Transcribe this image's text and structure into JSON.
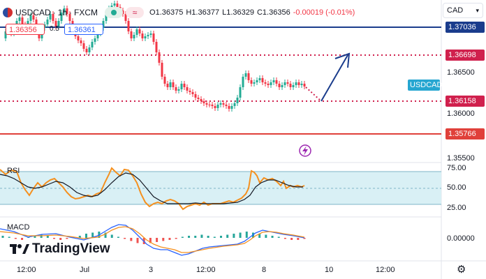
{
  "header": {
    "symbol": "USDCAD",
    "interval": "1h",
    "exchange": "FXCM",
    "open_label": "O",
    "open": "1.36375",
    "high_label": "H",
    "high": "1.36377",
    "low_label": "L",
    "low": "1.36329",
    "close_label": "C",
    "close": "1.36356",
    "change": "-0.00019 (-0.01%)",
    "sell_price": "1.36356",
    "spread": "0.5",
    "buy_price": "1.36361",
    "currency": "CAD"
  },
  "price_axis": {
    "plain_ticks": [
      "1.36500",
      "1.36000",
      "1.35500"
    ],
    "levels": [
      {
        "value": "1.37036",
        "color": "#1a3c8c"
      },
      {
        "value": "1.36698",
        "color": "#d0204d"
      },
      {
        "value": "1.36158",
        "color": "#d0204d"
      },
      {
        "value": "1.35766",
        "color": "#e0403a"
      }
    ],
    "symbol_tag": "USDCAD",
    "symbol_tag_color": "#26a6d1"
  },
  "rsi": {
    "label": "RSI",
    "ticks": [
      "75.00",
      "50.00",
      "25.00"
    ]
  },
  "macd": {
    "label": "MACD",
    "tick": "0.00000"
  },
  "time_axis": [
    "12:00",
    "Jul",
    "3",
    "12:00",
    "8",
    "10",
    "12:00"
  ],
  "brand": "TradingView",
  "icons": {
    "flash": "lightning-bolt-icon",
    "settings": "gear-icon",
    "expand": "chevron-down-icon"
  }
}
